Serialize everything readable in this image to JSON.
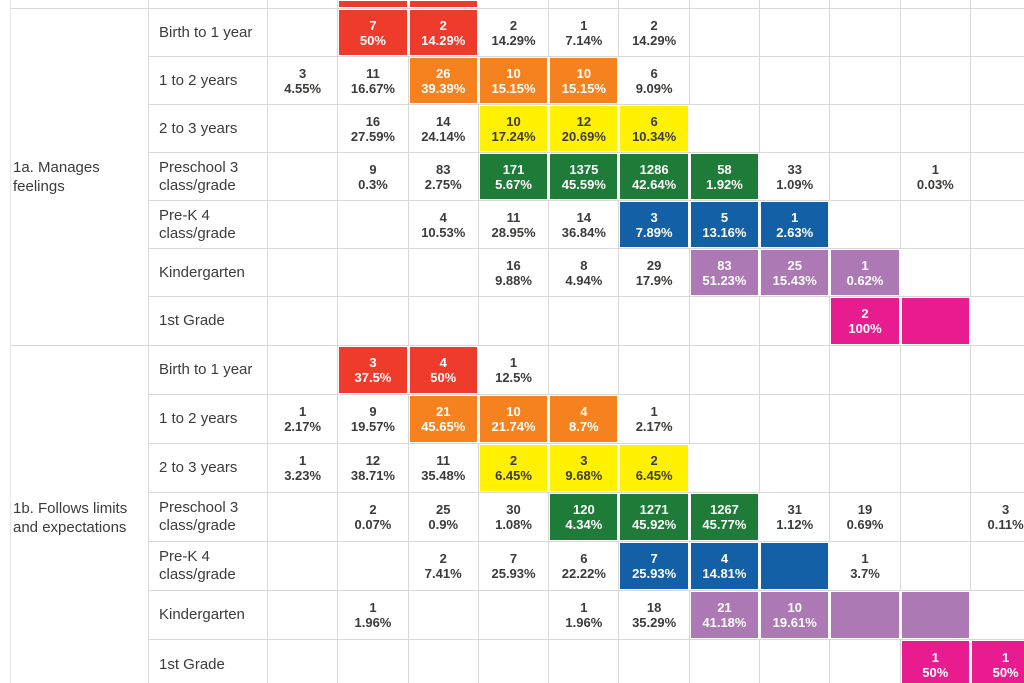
{
  "colors": {
    "red": "#EE3B2B",
    "orange": "#F5821E",
    "yellow": "#FFF100",
    "green": "#1E7B38",
    "blue": "#1360A6",
    "purple": "#AC79B4",
    "magenta": "#E91C8F",
    "text_dark": "#3B3B39",
    "grid": "#D8D8D6",
    "cell_text_on_color": "#FFFFFF"
  },
  "chart_data": {
    "type": "table",
    "subtype": "heatmap-crosstab",
    "num_data_columns": 11,
    "partial_top_row": {
      "cells": [
        null,
        {
          "color": "red"
        },
        {
          "color": "red"
        },
        null,
        null,
        null,
        null,
        null,
        null,
        null,
        null
      ]
    },
    "sections": [
      {
        "label": "1a. Manages feelings",
        "rows": [
          {
            "label": "Birth to 1 year",
            "cells": [
              null,
              {
                "count": "7",
                "pct": "50%",
                "color": "red"
              },
              {
                "count": "2",
                "pct": "14.29%",
                "color": "red"
              },
              {
                "count": "2",
                "pct": "14.29%"
              },
              {
                "count": "1",
                "pct": "7.14%"
              },
              {
                "count": "2",
                "pct": "14.29%"
              },
              null,
              null,
              null,
              null,
              null
            ]
          },
          {
            "label": "1 to 2 years",
            "cells": [
              {
                "count": "3",
                "pct": "4.55%"
              },
              {
                "count": "11",
                "pct": "16.67%"
              },
              {
                "count": "26",
                "pct": "39.39%",
                "color": "orange"
              },
              {
                "count": "10",
                "pct": "15.15%",
                "color": "orange"
              },
              {
                "count": "10",
                "pct": "15.15%",
                "color": "orange"
              },
              {
                "count": "6",
                "pct": "9.09%"
              },
              null,
              null,
              null,
              null,
              null
            ]
          },
          {
            "label": "2 to 3 years",
            "cells": [
              null,
              {
                "count": "16",
                "pct": "27.59%"
              },
              {
                "count": "14",
                "pct": "24.14%"
              },
              {
                "count": "10",
                "pct": "17.24%",
                "color": "yellow"
              },
              {
                "count": "12",
                "pct": "20.69%",
                "color": "yellow"
              },
              {
                "count": "6",
                "pct": "10.34%",
                "color": "yellow"
              },
              null,
              null,
              null,
              null,
              null
            ]
          },
          {
            "label": "Preschool 3 class/grade",
            "cells": [
              null,
              {
                "count": "9",
                "pct": "0.3%"
              },
              {
                "count": "83",
                "pct": "2.75%"
              },
              {
                "count": "171",
                "pct": "5.67%",
                "color": "green"
              },
              {
                "count": "1375",
                "pct": "45.59%",
                "color": "green"
              },
              {
                "count": "1286",
                "pct": "42.64%",
                "color": "green"
              },
              {
                "count": "58",
                "pct": "1.92%",
                "color": "green"
              },
              {
                "count": "33",
                "pct": "1.09%"
              },
              null,
              {
                "count": "1",
                "pct": "0.03%"
              },
              null
            ]
          },
          {
            "label": "Pre-K 4 class/grade",
            "cells": [
              null,
              null,
              {
                "count": "4",
                "pct": "10.53%"
              },
              {
                "count": "11",
                "pct": "28.95%"
              },
              {
                "count": "14",
                "pct": "36.84%"
              },
              {
                "count": "3",
                "pct": "7.89%",
                "color": "blue"
              },
              {
                "count": "5",
                "pct": "13.16%",
                "color": "blue"
              },
              {
                "count": "1",
                "pct": "2.63%",
                "color": "blue"
              },
              null,
              null,
              null
            ]
          },
          {
            "label": "Kindergarten",
            "cells": [
              null,
              null,
              null,
              {
                "count": "16",
                "pct": "9.88%"
              },
              {
                "count": "8",
                "pct": "4.94%"
              },
              {
                "count": "29",
                "pct": "17.9%"
              },
              {
                "count": "83",
                "pct": "51.23%",
                "color": "purple"
              },
              {
                "count": "25",
                "pct": "15.43%",
                "color": "purple"
              },
              {
                "count": "1",
                "pct": "0.62%",
                "color": "purple"
              },
              null,
              null
            ]
          },
          {
            "label": "1st Grade",
            "cells": [
              null,
              null,
              null,
              null,
              null,
              null,
              null,
              null,
              {
                "count": "2",
                "pct": "100%",
                "color": "magenta"
              },
              {
                "color": "magenta"
              },
              null
            ]
          }
        ]
      },
      {
        "label": "1b. Follows limits and expectations",
        "rows": [
          {
            "label": "Birth to 1 year",
            "cells": [
              null,
              {
                "count": "3",
                "pct": "37.5%",
                "color": "red"
              },
              {
                "count": "4",
                "pct": "50%",
                "color": "red"
              },
              {
                "count": "1",
                "pct": "12.5%"
              },
              null,
              null,
              null,
              null,
              null,
              null,
              null
            ]
          },
          {
            "label": "1 to 2 years",
            "cells": [
              {
                "count": "1",
                "pct": "2.17%"
              },
              {
                "count": "9",
                "pct": "19.57%"
              },
              {
                "count": "21",
                "pct": "45.65%",
                "color": "orange"
              },
              {
                "count": "10",
                "pct": "21.74%",
                "color": "orange"
              },
              {
                "count": "4",
                "pct": "8.7%",
                "color": "orange"
              },
              {
                "count": "1",
                "pct": "2.17%"
              },
              null,
              null,
              null,
              null,
              null
            ]
          },
          {
            "label": "2 to 3 years",
            "cells": [
              {
                "count": "1",
                "pct": "3.23%"
              },
              {
                "count": "12",
                "pct": "38.71%"
              },
              {
                "count": "11",
                "pct": "35.48%"
              },
              {
                "count": "2",
                "pct": "6.45%",
                "color": "yellow"
              },
              {
                "count": "3",
                "pct": "9.68%",
                "color": "yellow"
              },
              {
                "count": "2",
                "pct": "6.45%",
                "color": "yellow"
              },
              null,
              null,
              null,
              null,
              null
            ]
          },
          {
            "label": "Preschool 3 class/grade",
            "cells": [
              null,
              {
                "count": "2",
                "pct": "0.07%"
              },
              {
                "count": "25",
                "pct": "0.9%"
              },
              {
                "count": "30",
                "pct": "1.08%"
              },
              {
                "count": "120",
                "pct": "4.34%",
                "color": "green"
              },
              {
                "count": "1271",
                "pct": "45.92%",
                "color": "green"
              },
              {
                "count": "1267",
                "pct": "45.77%",
                "color": "green"
              },
              {
                "count": "31",
                "pct": "1.12%"
              },
              {
                "count": "19",
                "pct": "0.69%"
              },
              null,
              {
                "count": "3",
                "pct": "0.11%"
              }
            ]
          },
          {
            "label": "Pre-K 4 class/grade",
            "cells": [
              null,
              null,
              {
                "count": "2",
                "pct": "7.41%"
              },
              {
                "count": "7",
                "pct": "25.93%"
              },
              {
                "count": "6",
                "pct": "22.22%"
              },
              {
                "count": "7",
                "pct": "25.93%",
                "color": "blue"
              },
              {
                "count": "4",
                "pct": "14.81%",
                "color": "blue"
              },
              {
                "color": "blue"
              },
              {
                "count": "1",
                "pct": "3.7%"
              },
              null,
              null
            ]
          },
          {
            "label": "Kindergarten",
            "cells": [
              null,
              {
                "count": "1",
                "pct": "1.96%"
              },
              null,
              null,
              {
                "count": "1",
                "pct": "1.96%"
              },
              {
                "count": "18",
                "pct": "35.29%"
              },
              {
                "count": "21",
                "pct": "41.18%",
                "color": "purple"
              },
              {
                "count": "10",
                "pct": "19.61%",
                "color": "purple"
              },
              {
                "color": "purple"
              },
              {
                "color": "purple"
              },
              null
            ]
          },
          {
            "label": "1st Grade",
            "cells": [
              null,
              null,
              null,
              null,
              null,
              null,
              null,
              null,
              null,
              {
                "count": "1",
                "pct": "50%",
                "color": "magenta"
              },
              {
                "count": "1",
                "pct": "50%",
                "color": "magenta"
              }
            ]
          }
        ]
      }
    ]
  }
}
